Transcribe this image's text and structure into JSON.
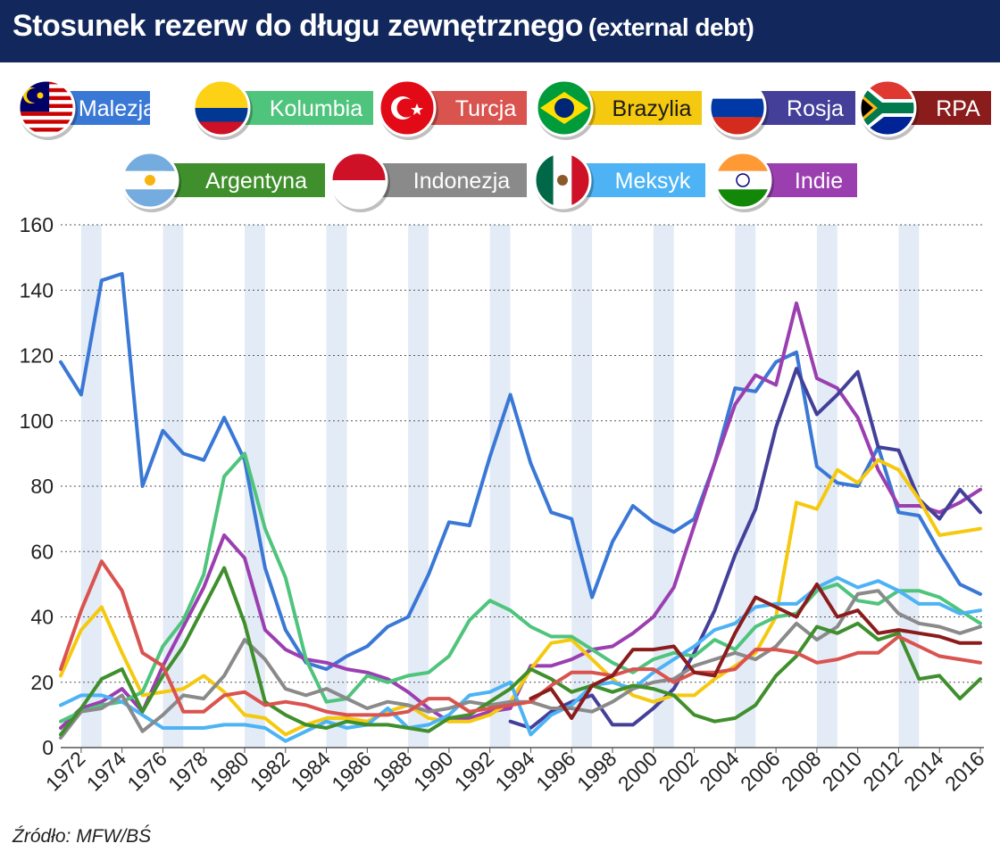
{
  "title": "Stosunek rezerw do długu zewnętrznego",
  "subtitle": "(external debt)",
  "source": "Źródło: MFW/BŚ",
  "legend": [
    {
      "name": "Malezja",
      "color": "#3a78d6",
      "flag": "malaysia-flag-icon"
    },
    {
      "name": "Kolumbia",
      "color": "#4fc47c",
      "flag": "colombia-flag-icon"
    },
    {
      "name": "Turcja",
      "color": "#d9534f",
      "flag": "turkey-flag-icon"
    },
    {
      "name": "Brazylia",
      "color": "#f5c90f",
      "flag": "brazil-flag-icon"
    },
    {
      "name": "Rosja",
      "color": "#44409a",
      "flag": "russia-flag-icon"
    },
    {
      "name": "RPA",
      "color": "#8b1c1c",
      "flag": "south-africa-flag-icon"
    },
    {
      "name": "Argentyna",
      "color": "#3f8f2c",
      "flag": "argentina-flag-icon"
    },
    {
      "name": "Indonezja",
      "color": "#8a8a8a",
      "flag": "indonesia-flag-icon"
    },
    {
      "name": "Meksyk",
      "color": "#4db3f5",
      "flag": "mexico-flag-icon"
    },
    {
      "name": "Indie",
      "color": "#9b3fb0",
      "flag": "india-flag-icon"
    }
  ],
  "chart_data": {
    "type": "line",
    "ylim": [
      0,
      160
    ],
    "yticks": [
      0,
      20,
      40,
      60,
      80,
      100,
      120,
      140,
      160
    ],
    "xlim": [
      1971,
      2016
    ],
    "xticks": [
      1972,
      1974,
      1976,
      1978,
      1980,
      1982,
      1984,
      1986,
      1988,
      1990,
      1992,
      1994,
      1996,
      1998,
      2000,
      2002,
      2004,
      2006,
      2008,
      2010,
      2012,
      2014,
      2016
    ],
    "grid": "horizontal dashed",
    "legend_position": "top",
    "series": [
      {
        "name": "Malezja",
        "color": "#3a78d6",
        "start": 1971,
        "values": [
          118,
          108,
          143,
          145,
          80,
          97,
          90,
          88,
          101,
          88,
          55,
          36,
          26,
          24,
          28,
          31,
          37,
          40,
          53,
          69,
          68,
          89,
          108,
          87,
          72,
          70,
          46,
          63,
          74,
          69,
          66,
          70,
          87,
          110,
          109,
          118,
          121,
          86,
          81,
          80,
          92,
          72,
          71,
          60,
          50,
          47
        ]
      },
      {
        "name": "Indie",
        "color": "#9b3fb0",
        "start": 1971,
        "values": [
          6,
          12,
          14,
          18,
          11,
          25,
          37,
          49,
          65,
          58,
          36,
          30,
          27,
          26,
          24,
          23,
          21,
          17,
          12,
          8,
          9,
          11,
          12,
          25,
          25,
          27,
          30,
          31,
          35,
          40,
          49,
          68,
          87,
          105,
          114,
          111,
          136,
          113,
          110,
          101,
          85,
          74,
          74,
          72,
          75,
          79
        ]
      },
      {
        "name": "Rosja",
        "color": "#44409a",
        "start": 1993,
        "values": [
          8,
          6,
          11,
          14,
          16,
          7,
          7,
          12,
          18,
          29,
          42,
          59,
          73,
          98,
          116,
          102,
          108,
          115,
          92,
          91,
          76,
          70,
          79,
          72
        ]
      },
      {
        "name": "Brazylia",
        "color": "#f5c90f",
        "start": 1971,
        "values": [
          22,
          36,
          43,
          29,
          16,
          17,
          18,
          22,
          17,
          10,
          9,
          4,
          7,
          9,
          9,
          8,
          11,
          13,
          9,
          8,
          8,
          10,
          14,
          24,
          32,
          33,
          27,
          21,
          16,
          14,
          16,
          16,
          21,
          25,
          29,
          40,
          75,
          73,
          85,
          81,
          88,
          85,
          76,
          65,
          66,
          67
        ]
      },
      {
        "name": "Kolumbia",
        "color": "#4fc47c",
        "start": 1971,
        "values": [
          8,
          11,
          13,
          14,
          17,
          31,
          39,
          53,
          83,
          90,
          67,
          52,
          27,
          14,
          15,
          22,
          20,
          22,
          23,
          28,
          39,
          45,
          42,
          37,
          34,
          34,
          30,
          26,
          23,
          27,
          29,
          28,
          33,
          30,
          37,
          40,
          41,
          48,
          50,
          45,
          44,
          48,
          48,
          46,
          42,
          38
        ]
      },
      {
        "name": "Meksyk",
        "color": "#4db3f5",
        "start": 1971,
        "values": [
          13,
          16,
          16,
          14,
          10,
          6,
          6,
          6,
          7,
          7,
          6,
          2,
          5,
          8,
          6,
          7,
          12,
          6,
          7,
          10,
          16,
          17,
          20,
          4,
          10,
          13,
          19,
          20,
          18,
          23,
          27,
          31,
          36,
          38,
          43,
          44,
          44,
          49,
          52,
          49,
          51,
          48,
          44,
          44,
          41,
          42
        ]
      },
      {
        "name": "Indonezja",
        "color": "#8a8a8a",
        "start": 1971,
        "values": [
          3,
          11,
          12,
          16,
          5,
          10,
          16,
          15,
          22,
          33,
          27,
          18,
          16,
          18,
          15,
          12,
          14,
          13,
          11,
          12,
          14,
          13,
          14,
          14,
          12,
          12,
          11,
          14,
          18,
          20,
          21,
          25,
          27,
          29,
          27,
          31,
          38,
          33,
          37,
          47,
          48,
          41,
          38,
          37,
          35,
          37
        ]
      },
      {
        "name": "Argentyna",
        "color": "#3f8f2c",
        "start": 1971,
        "values": [
          4,
          12,
          21,
          24,
          11,
          22,
          31,
          43,
          55,
          38,
          14,
          10,
          7,
          6,
          8,
          7,
          7,
          6,
          5,
          9,
          10,
          14,
          18,
          24,
          21,
          17,
          19,
          17,
          19,
          18,
          16,
          10,
          8,
          9,
          13,
          22,
          28,
          37,
          35,
          38,
          33,
          35,
          21,
          22,
          15,
          21
        ]
      },
      {
        "name": "Turcja",
        "color": "#d9534f",
        "start": 1971,
        "values": [
          24,
          42,
          57,
          48,
          29,
          25,
          11,
          11,
          16,
          17,
          13,
          14,
          13,
          11,
          10,
          10,
          10,
          11,
          15,
          15,
          11,
          12,
          13,
          14,
          19,
          23,
          23,
          22,
          24,
          24,
          20,
          23,
          23,
          24,
          30,
          30,
          29,
          26,
          27,
          29,
          29,
          34,
          31,
          28,
          27,
          26
        ]
      },
      {
        "name": "RPA",
        "color": "#8b1c1c",
        "start": 1994,
        "values": [
          15,
          18,
          9,
          19,
          22,
          30,
          30,
          31,
          23,
          22,
          35,
          46,
          43,
          40,
          50,
          40,
          42,
          35,
          36,
          35,
          34,
          32,
          32
        ]
      }
    ]
  }
}
